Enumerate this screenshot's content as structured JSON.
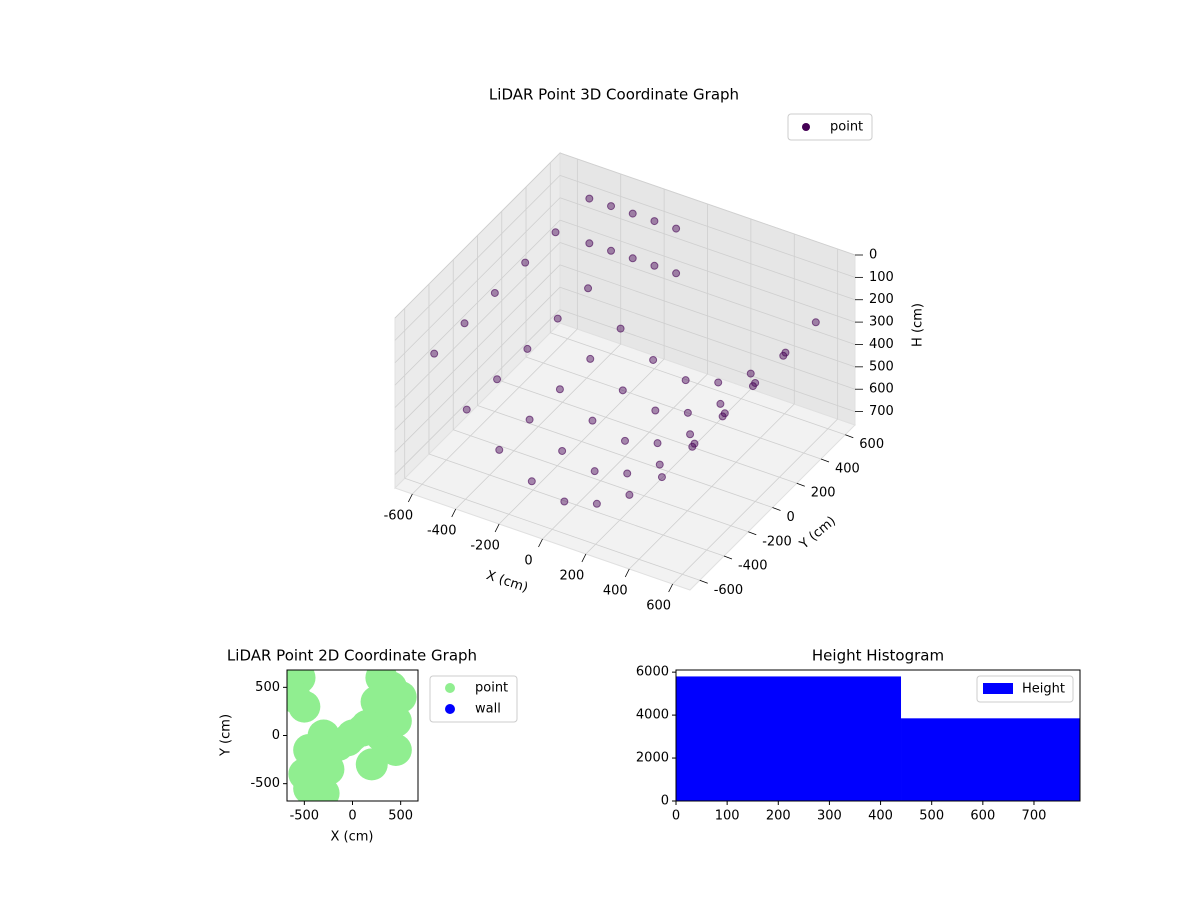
{
  "chart_data": [
    {
      "type": "scatter3d",
      "title": "LiDAR Point 3D Coordinate Graph",
      "xlabel": "X (cm)",
      "ylabel": "Y (cm)",
      "zlabel": "H (cm)",
      "xlim": [
        -680,
        680
      ],
      "ylim": [
        -680,
        680
      ],
      "zlim": [
        0,
        760
      ],
      "xticks": [
        -600,
        -400,
        -200,
        0,
        200,
        400,
        600
      ],
      "yticks": [
        -600,
        -400,
        -200,
        0,
        200,
        400,
        600
      ],
      "zticks": [
        0,
        100,
        200,
        300,
        400,
        500,
        600,
        700
      ],
      "legend": "upper right",
      "series": [
        {
          "name": "point",
          "color": "#440154",
          "x": [
            -600,
            -450,
            -300,
            -150,
            0,
            150,
            300,
            450,
            600,
            -600,
            -450,
            -300,
            -150,
            0,
            150,
            300,
            450,
            600,
            -600,
            -450,
            -300,
            -150,
            0,
            150,
            300,
            450,
            600,
            -600,
            -450,
            -300,
            -150,
            0,
            150,
            300,
            450,
            600,
            -600,
            -450,
            -300,
            -150,
            0,
            150,
            300,
            450,
            600,
            -500,
            -400,
            -300,
            -200,
            -100,
            -500,
            -400,
            -300,
            -200,
            -100
          ],
          "y": [
            -500,
            -500,
            -500,
            -500,
            -500,
            -500,
            -500,
            -500,
            -500,
            -250,
            -250,
            -250,
            -250,
            -250,
            -250,
            -250,
            -250,
            -250,
            0,
            0,
            0,
            0,
            0,
            0,
            0,
            0,
            0,
            250,
            250,
            250,
            250,
            250,
            250,
            250,
            250,
            250,
            500,
            500,
            500,
            500,
            500,
            500,
            500,
            500,
            500,
            600,
            600,
            600,
            600,
            600,
            600,
            600,
            600,
            600,
            600
          ],
          "z": [
            230,
            430,
            560,
            650,
            690,
            650,
            560,
            430,
            230,
            230,
            430,
            560,
            650,
            690,
            650,
            560,
            430,
            230,
            230,
            430,
            560,
            650,
            690,
            650,
            560,
            430,
            230,
            230,
            430,
            560,
            650,
            690,
            650,
            560,
            430,
            230,
            230,
            430,
            560,
            650,
            690,
            650,
            560,
            430,
            230,
            100,
            100,
            100,
            100,
            100,
            300,
            300,
            300,
            300,
            300
          ]
        }
      ]
    },
    {
      "type": "scatter",
      "title": "LiDAR Point 2D Coordinate Graph",
      "xlabel": "X (cm)",
      "ylabel": "Y (cm)",
      "xlim": [
        -680,
        680
      ],
      "ylim": [
        -680,
        680
      ],
      "xticks": [
        -500,
        0,
        500
      ],
      "yticks": [
        -500,
        0,
        500
      ],
      "legend": "outside right",
      "series": [
        {
          "name": "point",
          "color": "#90ee90",
          "x": [
            300,
            400,
            500,
            250,
            350,
            450,
            150,
            300,
            450,
            200,
            -300,
            -400,
            -500,
            -250,
            -350,
            -450,
            -150,
            -300,
            -550,
            -600,
            -500,
            -450,
            -350,
            100,
            0,
            -50
          ],
          "y": [
            600,
            500,
            400,
            350,
            250,
            150,
            100,
            0,
            -150,
            -300,
            -600,
            -500,
            -400,
            -350,
            -250,
            -150,
            -100,
            0,
            600,
            400,
            300,
            -550,
            -650,
            50,
            0,
            -50
          ]
        },
        {
          "name": "wall",
          "color": "#0000ff",
          "x": [],
          "y": []
        }
      ]
    },
    {
      "type": "histogram",
      "title": "Height Histogram",
      "bins": [
        0,
        440,
        790
      ],
      "values": [
        5800,
        3850
      ],
      "color": "#0000ff",
      "xlim": [
        0,
        790
      ],
      "ylim": [
        0,
        6100
      ],
      "xticks": [
        0,
        100,
        200,
        300,
        400,
        500,
        600,
        700
      ],
      "yticks": [
        0,
        2000,
        4000,
        6000
      ],
      "legend": "upper right",
      "series_name": "Height"
    }
  ]
}
